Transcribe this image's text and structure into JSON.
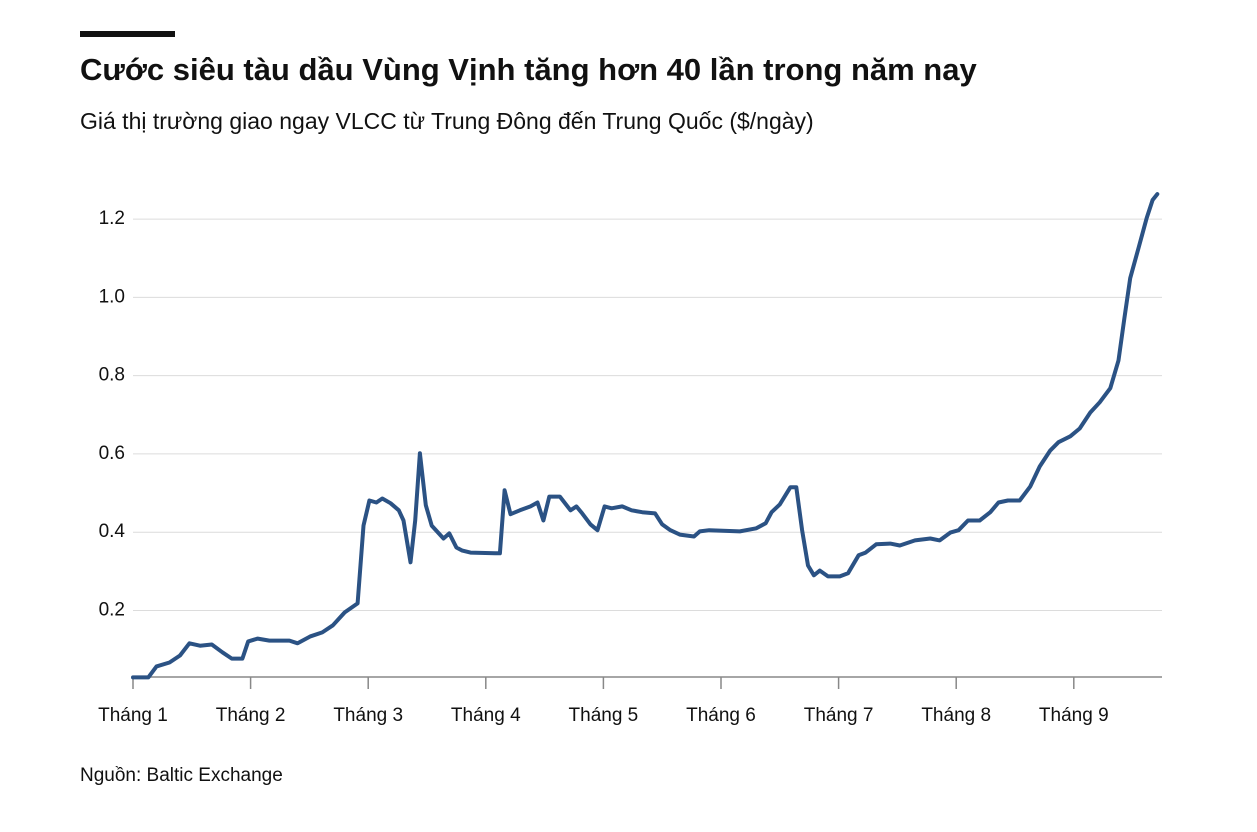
{
  "chart_data": {
    "type": "line",
    "title": "Cước siêu tàu dầu Vùng Vịnh tăng hơn 40 lần trong năm nay",
    "subtitle": "Giá thị trường giao ngay VLCC từ Trung Đông đến Trung Quốc ($/ngày)",
    "source": "Nguồn: Baltic Exchange",
    "color": "#2b5284",
    "grid": true,
    "x": [
      1.0,
      1.13,
      1.2,
      1.31,
      1.4,
      1.48,
      1.57,
      1.67,
      1.76,
      1.84,
      1.93,
      1.98,
      2.06,
      2.16,
      2.33,
      2.4,
      2.51,
      2.61,
      2.7,
      2.8,
      2.91,
      2.96,
      3.01,
      3.07,
      3.12,
      3.19,
      3.26,
      3.3,
      3.36,
      3.4,
      3.44,
      3.49,
      3.54,
      3.64,
      3.69,
      3.75,
      3.8,
      3.87,
      4.08,
      4.12,
      4.16,
      4.21,
      4.29,
      4.38,
      4.44,
      4.49,
      4.54,
      4.63,
      4.72,
      4.77,
      4.82,
      4.89,
      4.95,
      5.01,
      5.07,
      5.16,
      5.24,
      5.33,
      5.44,
      5.5,
      5.57,
      5.65,
      5.77,
      5.82,
      5.9,
      6.16,
      6.3,
      6.38,
      6.43,
      6.5,
      6.59,
      6.64,
      6.69,
      6.74,
      6.79,
      6.84,
      6.91,
      7.01,
      7.08,
      7.17,
      7.23,
      7.32,
      7.44,
      7.52,
      7.65,
      7.78,
      7.86,
      7.95,
      8.02,
      8.1,
      8.2,
      8.29,
      8.36,
      8.44,
      8.54,
      8.63,
      8.71,
      8.8,
      8.87,
      8.97,
      9.05,
      9.14,
      9.22,
      9.31,
      9.38,
      9.43,
      9.48,
      9.55,
      9.62,
      9.67,
      9.71
    ],
    "values": [
      0.029,
      0.029,
      0.057,
      0.067,
      0.085,
      0.116,
      0.11,
      0.113,
      0.093,
      0.077,
      0.077,
      0.121,
      0.128,
      0.123,
      0.123,
      0.116,
      0.134,
      0.144,
      0.162,
      0.195,
      0.218,
      0.417,
      0.481,
      0.476,
      0.486,
      0.474,
      0.456,
      0.43,
      0.323,
      0.43,
      0.602,
      0.469,
      0.417,
      0.384,
      0.397,
      0.361,
      0.353,
      0.348,
      0.346,
      0.346,
      0.507,
      0.446,
      0.456,
      0.466,
      0.476,
      0.43,
      0.491,
      0.491,
      0.456,
      0.466,
      0.448,
      0.42,
      0.405,
      0.466,
      0.461,
      0.466,
      0.456,
      0.451,
      0.448,
      0.42,
      0.405,
      0.394,
      0.389,
      0.402,
      0.405,
      0.402,
      0.41,
      0.423,
      0.451,
      0.471,
      0.515,
      0.515,
      0.405,
      0.315,
      0.29,
      0.302,
      0.287,
      0.287,
      0.295,
      0.341,
      0.348,
      0.369,
      0.371,
      0.366,
      0.379,
      0.384,
      0.379,
      0.399,
      0.405,
      0.43,
      0.43,
      0.451,
      0.476,
      0.481,
      0.481,
      0.517,
      0.568,
      0.609,
      0.63,
      0.645,
      0.665,
      0.706,
      0.732,
      0.768,
      0.839,
      0.947,
      1.049,
      1.126,
      1.203,
      1.249,
      1.264
    ],
    "xlim": [
      1,
      9.75
    ],
    "xticks": [
      {
        "value": 1,
        "label": "Tháng 1"
      },
      {
        "value": 2,
        "label": "Tháng 2"
      },
      {
        "value": 3,
        "label": "Tháng 3"
      },
      {
        "value": 4,
        "label": "Tháng 4"
      },
      {
        "value": 5,
        "label": "Tháng 5"
      },
      {
        "value": 6,
        "label": "Tháng 6"
      },
      {
        "value": 7,
        "label": "Tháng 7"
      },
      {
        "value": 8,
        "label": "Tháng 8"
      },
      {
        "value": 9,
        "label": "Tháng 9"
      }
    ],
    "ylim": [
      0.03,
      1.3
    ],
    "yticks": [
      0.2,
      0.4,
      0.6,
      0.8,
      {
        "value": 1,
        "label": "1.0"
      },
      1.2
    ]
  }
}
